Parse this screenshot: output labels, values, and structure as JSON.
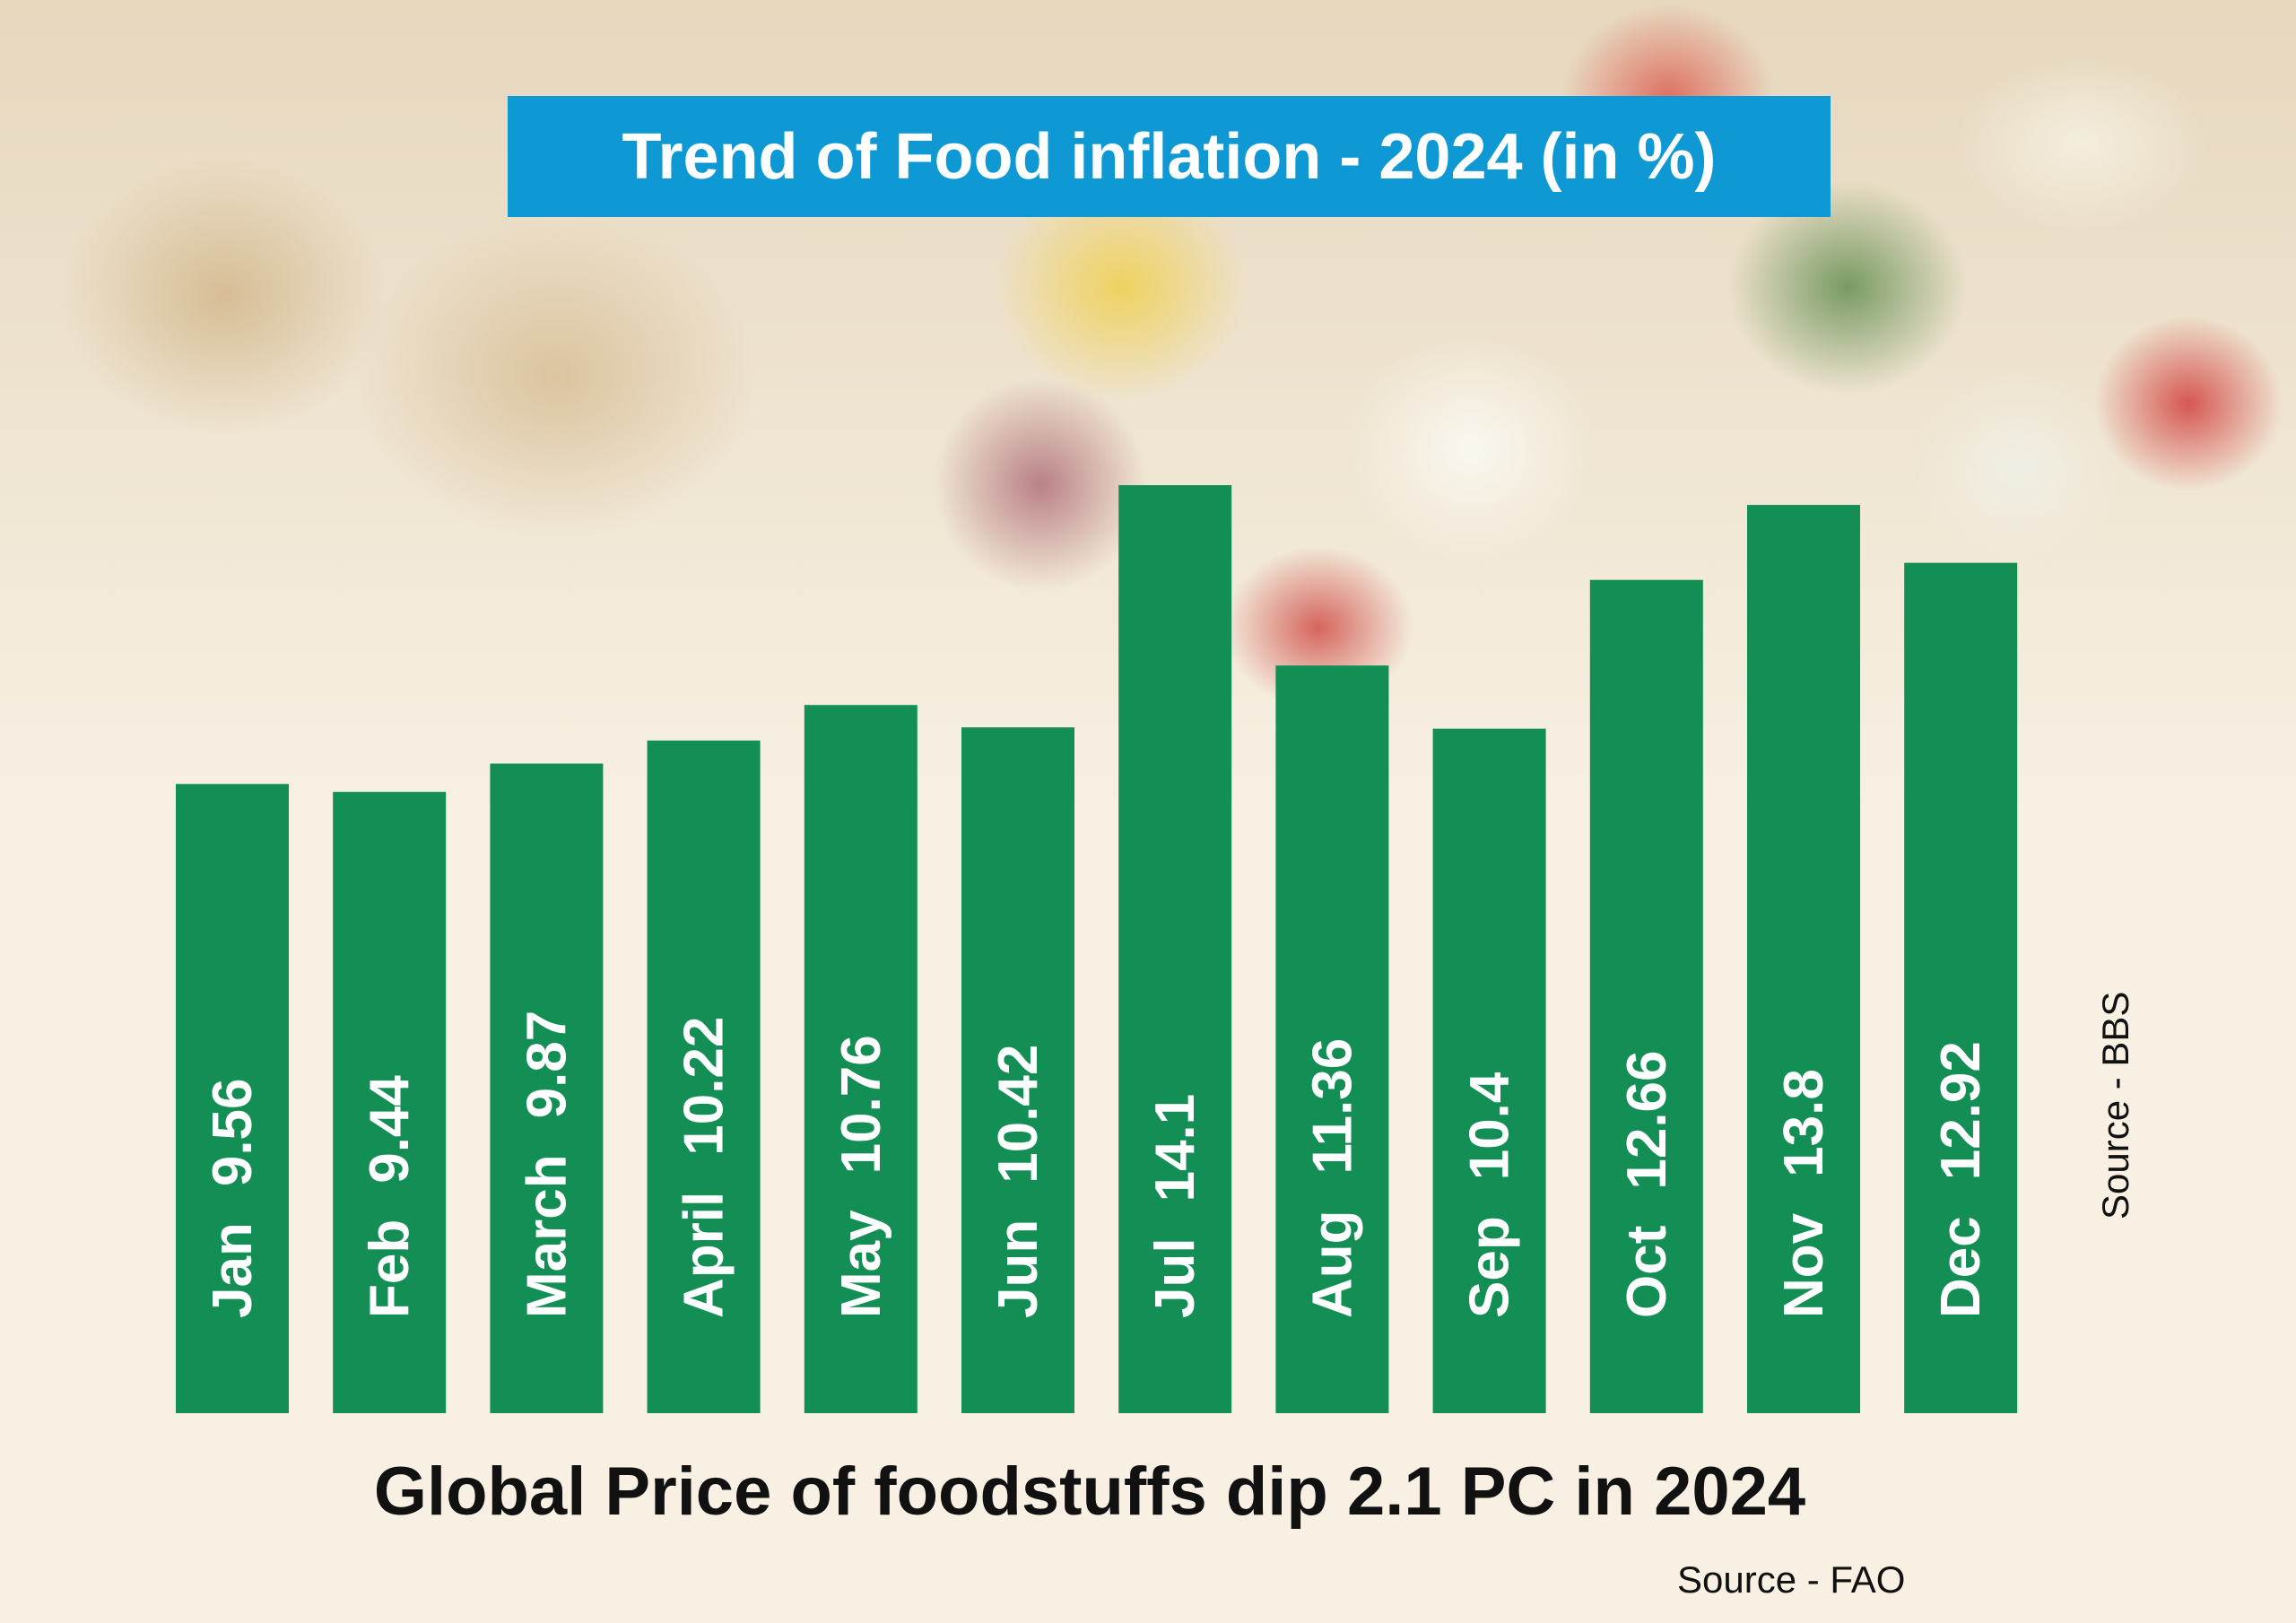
{
  "title": "Trend of Food inflation - 2024 (in %)",
  "footer_title": "Global Price of foodstuffs dip 2.1 PC  in 2024",
  "source_fao": "Source - FAO",
  "source_bbs": "Source - BBS",
  "colors": {
    "bar": "#138f55",
    "bar_text": "#ffffff",
    "title_bg": "#0f99d4",
    "background": "#f7f0e3"
  },
  "chart_data": {
    "type": "bar",
    "title": "Trend of Food inflation - 2024 (in %)",
    "categories": [
      "Jan",
      "Feb",
      "March",
      "April",
      "May",
      "Jun",
      "Jul",
      "Aug",
      "Sep",
      "Oct",
      "Nov",
      "Dec"
    ],
    "values": [
      9.56,
      9.44,
      9.87,
      10.22,
      10.76,
      10.42,
      14.1,
      11.36,
      10.4,
      12.66,
      13.8,
      12.92
    ],
    "value_labels": [
      "9.56",
      "9.44",
      "9.87",
      "10.22",
      "10.76",
      "10.42",
      "14.1",
      "11.36",
      "10.4",
      "12.66",
      "13.8",
      "12.92"
    ],
    "xlabel": "",
    "ylabel": "",
    "grid": false,
    "labels_inside_bars": "rotated vertical"
  }
}
